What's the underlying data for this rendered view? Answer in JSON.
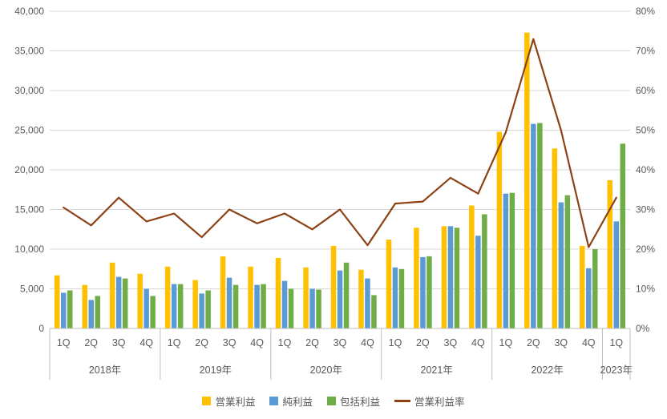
{
  "chart_data": {
    "type": "bar",
    "subtype": "combo-bar-line",
    "quarters": [
      "1Q",
      "2Q",
      "3Q",
      "4Q",
      "1Q",
      "2Q",
      "3Q",
      "4Q",
      "1Q",
      "2Q",
      "3Q",
      "4Q",
      "1Q",
      "2Q",
      "3Q",
      "4Q",
      "1Q",
      "2Q",
      "3Q",
      "4Q",
      "1Q"
    ],
    "year_groups": [
      {
        "label": "2018年",
        "count": 4
      },
      {
        "label": "2019年",
        "count": 4
      },
      {
        "label": "2020年",
        "count": 4
      },
      {
        "label": "2021年",
        "count": 4
      },
      {
        "label": "2022年",
        "count": 4
      },
      {
        "label": "2023年",
        "count": 1
      }
    ],
    "bar_series": [
      {
        "id": "operating-profit",
        "name": "営業利益",
        "color": "#FFC000",
        "values": [
          6700,
          5500,
          8300,
          6900,
          7800,
          6100,
          9100,
          7800,
          8900,
          7700,
          10400,
          7400,
          11200,
          12700,
          12900,
          15500,
          24800,
          37300,
          22700,
          10400,
          18700
        ]
      },
      {
        "id": "net-profit",
        "name": "純利益",
        "color": "#5B9BD5",
        "values": [
          4500,
          3600,
          6500,
          5000,
          5600,
          4400,
          6400,
          5500,
          6000,
          5000,
          7300,
          6300,
          7700,
          9000,
          12900,
          11700,
          17000,
          25800,
          15900,
          7600,
          13500
        ]
      },
      {
        "id": "comprehensive-income",
        "name": "包括利益",
        "color": "#70AD47",
        "values": [
          4800,
          4100,
          6300,
          4100,
          5600,
          4800,
          5500,
          5600,
          5000,
          4900,
          8300,
          4200,
          7500,
          9100,
          12700,
          14400,
          17100,
          25900,
          16800,
          10000,
          23300
        ]
      }
    ],
    "line_series": {
      "id": "operating-margin",
      "name": "営業利益率",
      "color": "#8C4215",
      "values_pct": [
        30.5,
        26,
        33,
        27,
        29,
        23,
        30,
        26.5,
        29,
        25,
        30,
        21,
        31.5,
        32,
        38,
        34,
        49.5,
        73,
        50,
        20.5,
        33
      ]
    },
    "left_axis": {
      "min": 0,
      "max": 40000,
      "ticks": [
        "0",
        "5,000",
        "10,000",
        "15,000",
        "20,000",
        "25,000",
        "30,000",
        "35,000",
        "40,000"
      ]
    },
    "right_axis": {
      "min_pct": 0,
      "max_pct": 80,
      "ticks": [
        "0%",
        "10%",
        "20%",
        "30%",
        "40%",
        "50%",
        "60%",
        "70%",
        "80%"
      ]
    },
    "grid": "horizontal",
    "legend_position": "bottom"
  }
}
